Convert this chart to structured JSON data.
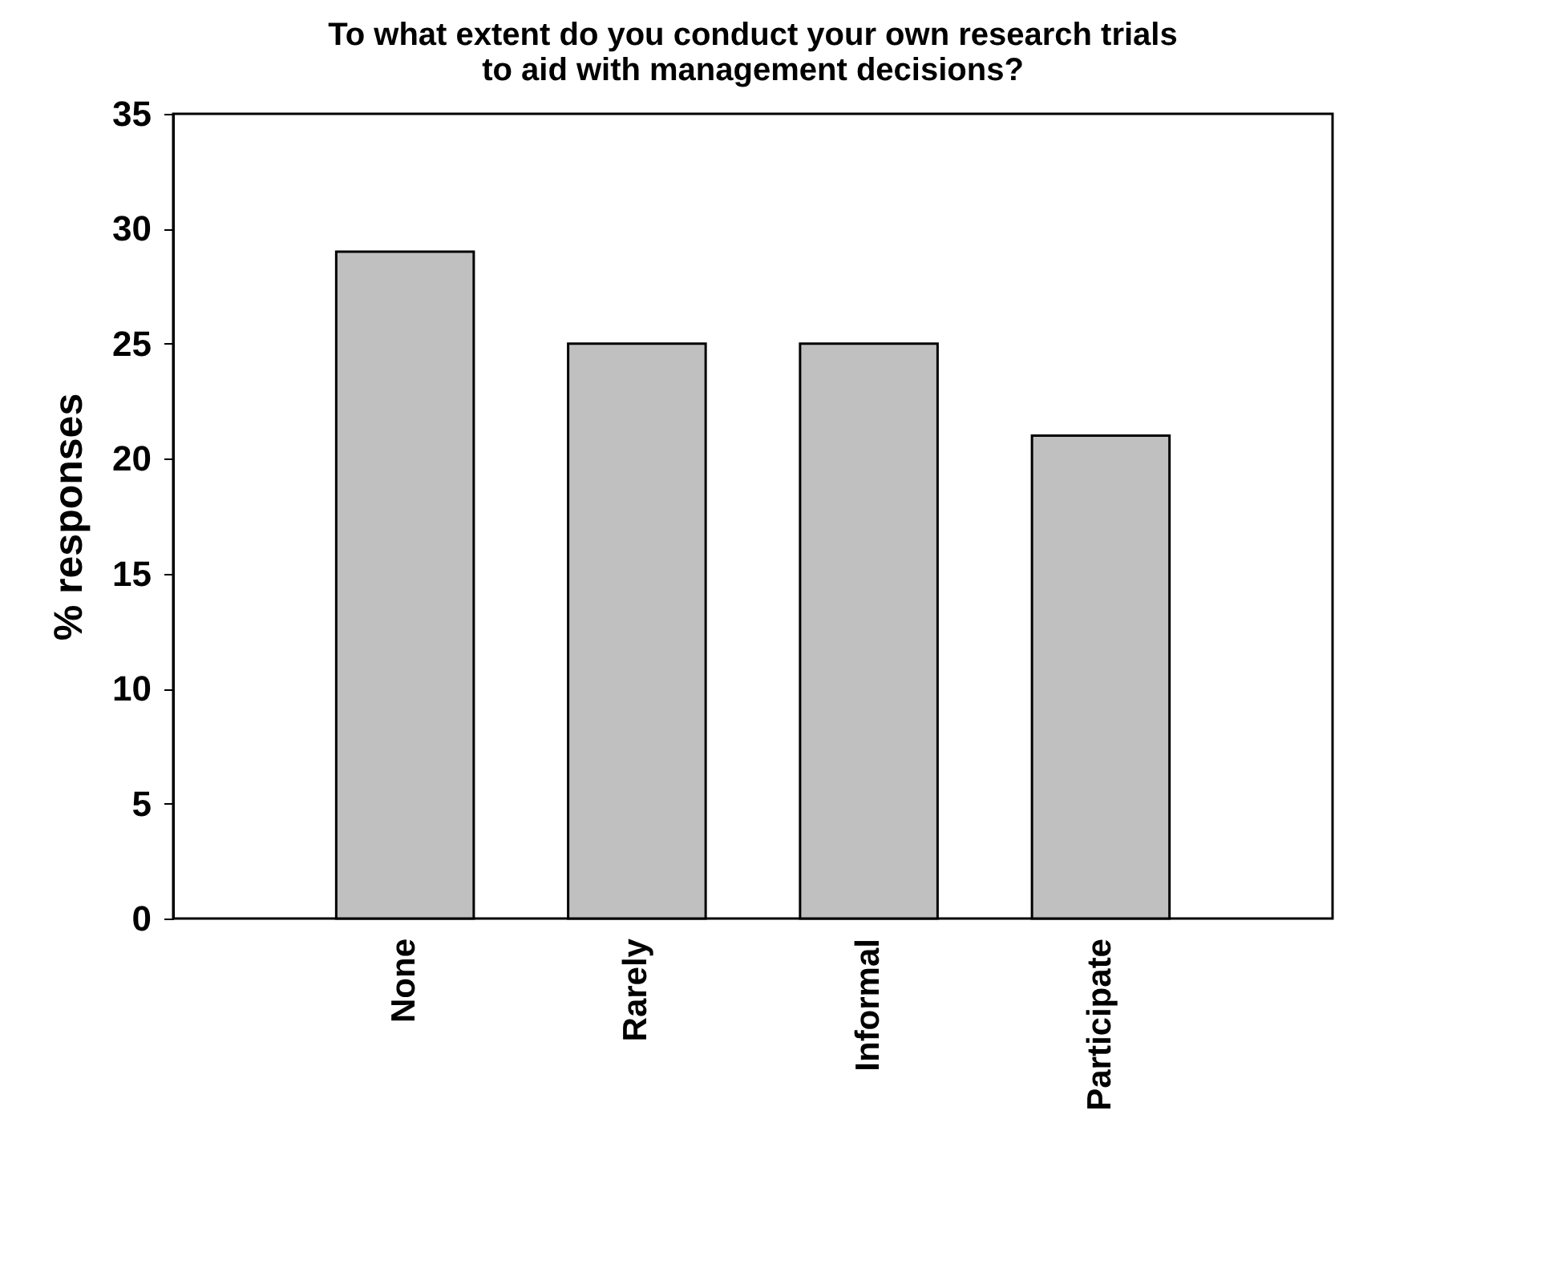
{
  "chart_data": {
    "type": "bar",
    "title": "To what extent do you conduct your own research trials to aid with management decisions?",
    "ylabel": "% responses",
    "categories": [
      "None",
      "Rarely",
      "Informal",
      "Participate"
    ],
    "values": [
      29,
      25,
      25,
      21
    ],
    "color": "#c0c0c0",
    "ylim": [
      0,
      35
    ],
    "yticks": [
      0,
      5,
      10,
      15,
      20,
      25,
      30,
      35
    ],
    "grid": false
  }
}
